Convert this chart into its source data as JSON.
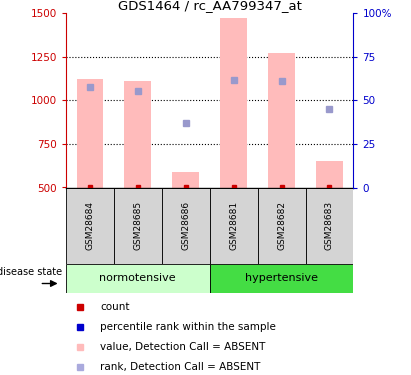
{
  "title": "GDS1464 / rc_AA799347_at",
  "samples": [
    "GSM28684",
    "GSM28685",
    "GSM28686",
    "GSM28681",
    "GSM28682",
    "GSM28683"
  ],
  "group_labels": [
    "normotensive",
    "hypertensive"
  ],
  "bar_bottom": 500,
  "pink_bar_tops": [
    1125,
    1110,
    590,
    1470,
    1270,
    650
  ],
  "blue_dot_values": [
    1075,
    1055,
    870,
    1115,
    1110,
    950
  ],
  "ylim_left": [
    500,
    1500
  ],
  "ylim_right": [
    0,
    100
  ],
  "yticks_left": [
    500,
    750,
    1000,
    1250,
    1500
  ],
  "yticks_right": [
    0,
    25,
    50,
    75,
    100
  ],
  "right_tick_labels": [
    "0",
    "25",
    "50",
    "75",
    "100%"
  ],
  "grid_values": [
    750,
    1000,
    1250
  ],
  "pink_color": "#ffbbbb",
  "blue_sq_color": "#9999cc",
  "red_color": "#cc0000",
  "dark_blue_color": "#0000cc",
  "left_axis_color": "#cc0000",
  "right_axis_color": "#0000cc",
  "bar_width": 0.55,
  "normotensive_color": "#ccffcc",
  "hypertensive_color": "#44dd44",
  "legend_items": [
    "count",
    "percentile rank within the sample",
    "value, Detection Call = ABSENT",
    "rank, Detection Call = ABSENT"
  ],
  "legend_colors": [
    "#cc0000",
    "#0000cc",
    "#ffbbbb",
    "#aaaadd"
  ]
}
